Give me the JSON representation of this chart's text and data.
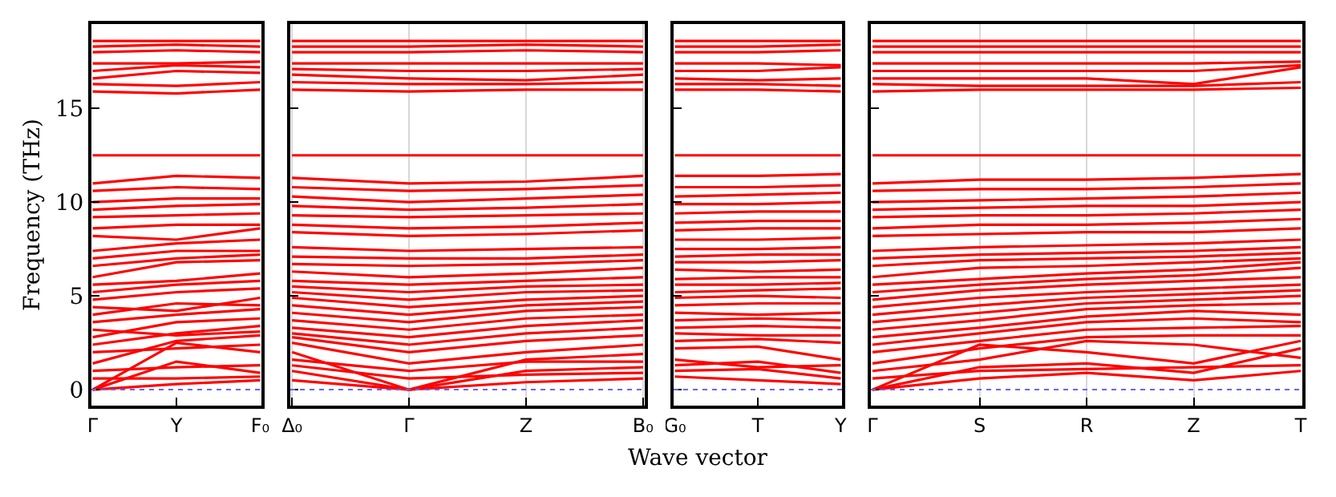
{
  "chart_data": [
    {
      "type": "line",
      "ylabel": "Frequency (THz)",
      "categories": [
        "Γ",
        "Y",
        "F₀"
      ],
      "ylim": [
        -0.85,
        19.5
      ],
      "yticks": [
        0,
        5,
        10,
        15
      ],
      "line_style": "solid",
      "ref_lines": [
        {
          "axis": "y",
          "value": 0,
          "color": "#6666ff",
          "line_style": "dotted"
        }
      ],
      "series": [
        {
          "color": "#ff0000",
          "values": [
            0,
            0.3,
            0.5
          ]
        },
        {
          "color": "#ff0000",
          "values": [
            0,
            1.5,
            0.9
          ]
        },
        {
          "color": "#ff0000",
          "values": [
            0,
            2.5,
            2.0
          ]
        },
        {
          "color": "#ff0000",
          "values": [
            0.6,
            0.6,
            0.7
          ]
        },
        {
          "color": "#ff0000",
          "values": [
            1.0,
            1.2,
            1.3
          ]
        },
        {
          "color": "#ff0000",
          "values": [
            1.4,
            2.6,
            2.9
          ]
        },
        {
          "color": "#ff0000",
          "values": [
            2.0,
            2.2,
            2.4
          ]
        },
        {
          "color": "#ff0000",
          "values": [
            2.4,
            3.0,
            3.4
          ]
        },
        {
          "color": "#ff0000",
          "values": [
            2.8,
            3.6,
            3.8
          ]
        },
        {
          "color": "#ff0000",
          "values": [
            3.2,
            2.9,
            3.1
          ]
        },
        {
          "color": "#ff0000",
          "values": [
            3.6,
            4.0,
            4.3
          ]
        },
        {
          "color": "#ff0000",
          "values": [
            4.0,
            4.6,
            4.5
          ]
        },
        {
          "color": "#ff0000",
          "values": [
            4.4,
            4.2,
            4.9
          ]
        },
        {
          "color": "#ff0000",
          "values": [
            4.8,
            5.2,
            5.4
          ]
        },
        {
          "color": "#ff0000",
          "values": [
            5.2,
            5.6,
            5.8
          ]
        },
        {
          "color": "#ff0000",
          "values": [
            5.6,
            5.8,
            6.2
          ]
        },
        {
          "color": "#ff0000",
          "values": [
            6.0,
            6.8,
            6.9
          ]
        },
        {
          "color": "#ff0000",
          "values": [
            6.6,
            7.0,
            7.2
          ]
        },
        {
          "color": "#ff0000",
          "values": [
            7.0,
            7.4,
            7.4
          ]
        },
        {
          "color": "#ff0000",
          "values": [
            7.4,
            7.8,
            8.0
          ]
        },
        {
          "color": "#ff0000",
          "values": [
            8.2,
            8.0,
            8.6
          ]
        },
        {
          "color": "#ff0000",
          "values": [
            8.6,
            8.8,
            8.8
          ]
        },
        {
          "color": "#ff0000",
          "values": [
            9.2,
            9.3,
            9.4
          ]
        },
        {
          "color": "#ff0000",
          "values": [
            9.6,
            9.8,
            9.9
          ]
        },
        {
          "color": "#ff0000",
          "values": [
            10.0,
            10.2,
            10.2
          ]
        },
        {
          "color": "#ff0000",
          "values": [
            10.6,
            10.8,
            10.7
          ]
        },
        {
          "color": "#ff0000",
          "values": [
            11.0,
            11.4,
            11.3
          ]
        },
        {
          "color": "#ff0000",
          "values": [
            12.5,
            12.5,
            12.5
          ]
        },
        {
          "color": "#ff0000",
          "values": [
            15.9,
            15.8,
            16.0
          ]
        },
        {
          "color": "#ff0000",
          "values": [
            16.3,
            16.2,
            16.4
          ]
        },
        {
          "color": "#ff0000",
          "values": [
            16.6,
            17.0,
            16.9
          ]
        },
        {
          "color": "#ff0000",
          "values": [
            17.0,
            17.3,
            17.2
          ]
        },
        {
          "color": "#ff0000",
          "values": [
            17.4,
            17.4,
            17.5
          ]
        },
        {
          "color": "#ff0000",
          "values": [
            18.0,
            18.1,
            18.0
          ]
        },
        {
          "color": "#ff0000",
          "values": [
            18.3,
            18.4,
            18.3
          ]
        },
        {
          "color": "#ff0000",
          "values": [
            18.6,
            18.6,
            18.6
          ]
        }
      ]
    },
    {
      "type": "line",
      "xlabel": "Wave vector",
      "categories": [
        "Δ₀",
        "Γ",
        "Z",
        "B₀"
      ],
      "ylim": [
        -0.85,
        19.5
      ],
      "yticks": [
        0,
        5,
        10,
        15
      ],
      "tick_labels": "x",
      "grid": "x",
      "line_style": "solid",
      "ref_lines": [
        {
          "axis": "y",
          "value": 0,
          "color": "#6666ff",
          "line_style": "dotted"
        }
      ],
      "series": [
        {
          "color": "#ff0000",
          "values": [
            0.5,
            0,
            0.4,
            0.6
          ]
        },
        {
          "color": "#ff0000",
          "values": [
            1.0,
            0,
            1.0,
            1.2
          ]
        },
        {
          "color": "#ff0000",
          "values": [
            2.0,
            0,
            1.6,
            1.9
          ]
        },
        {
          "color": "#ff0000",
          "values": [
            1.3,
            0.6,
            0.8,
            0.9
          ]
        },
        {
          "color": "#ff0000",
          "values": [
            1.6,
            1.0,
            1.5,
            1.5
          ]
        },
        {
          "color": "#ff0000",
          "values": [
            2.5,
            1.4,
            2.0,
            2.4
          ]
        },
        {
          "color": "#ff0000",
          "values": [
            2.8,
            2.0,
            2.6,
            2.9
          ]
        },
        {
          "color": "#ff0000",
          "values": [
            3.0,
            2.4,
            3.0,
            3.3
          ]
        },
        {
          "color": "#ff0000",
          "values": [
            3.3,
            2.8,
            3.4,
            3.7
          ]
        },
        {
          "color": "#ff0000",
          "values": [
            3.7,
            3.2,
            3.8,
            4.0
          ]
        },
        {
          "color": "#ff0000",
          "values": [
            4.1,
            3.6,
            4.2,
            4.4
          ]
        },
        {
          "color": "#ff0000",
          "values": [
            4.5,
            4.0,
            4.5,
            4.7
          ]
        },
        {
          "color": "#ff0000",
          "values": [
            4.9,
            4.4,
            4.8,
            5.0
          ]
        },
        {
          "color": "#ff0000",
          "values": [
            5.2,
            4.8,
            5.2,
            5.3
          ]
        },
        {
          "color": "#ff0000",
          "values": [
            5.5,
            5.2,
            5.5,
            5.6
          ]
        },
        {
          "color": "#ff0000",
          "values": [
            5.8,
            5.6,
            5.8,
            6.0
          ]
        },
        {
          "color": "#ff0000",
          "values": [
            6.3,
            6.0,
            6.2,
            6.5
          ]
        },
        {
          "color": "#ff0000",
          "values": [
            6.7,
            6.6,
            6.7,
            6.9
          ]
        },
        {
          "color": "#ff0000",
          "values": [
            7.1,
            7.0,
            7.0,
            7.2
          ]
        },
        {
          "color": "#ff0000",
          "values": [
            7.6,
            7.4,
            7.5,
            7.6
          ]
        },
        {
          "color": "#ff0000",
          "values": [
            8.4,
            8.2,
            8.3,
            8.5
          ]
        },
        {
          "color": "#ff0000",
          "values": [
            8.8,
            8.6,
            8.7,
            8.9
          ]
        },
        {
          "color": "#ff0000",
          "values": [
            9.3,
            9.2,
            9.3,
            9.4
          ]
        },
        {
          "color": "#ff0000",
          "values": [
            9.8,
            9.6,
            9.7,
            9.9
          ]
        },
        {
          "color": "#ff0000",
          "values": [
            10.3,
            10.0,
            10.2,
            10.4
          ]
        },
        {
          "color": "#ff0000",
          "values": [
            10.8,
            10.6,
            10.7,
            10.9
          ]
        },
        {
          "color": "#ff0000",
          "values": [
            11.3,
            11.0,
            11.1,
            11.4
          ]
        },
        {
          "color": "#ff0000",
          "values": [
            12.5,
            12.5,
            12.5,
            12.5
          ]
        },
        {
          "color": "#ff0000",
          "values": [
            16.0,
            15.9,
            16.0,
            16.0
          ]
        },
        {
          "color": "#ff0000",
          "values": [
            16.4,
            16.3,
            16.3,
            16.4
          ]
        },
        {
          "color": "#ff0000",
          "values": [
            16.8,
            16.6,
            16.5,
            16.8
          ]
        },
        {
          "color": "#ff0000",
          "values": [
            17.1,
            17.0,
            17.0,
            17.1
          ]
        },
        {
          "color": "#ff0000",
          "values": [
            17.4,
            17.4,
            17.4,
            17.4
          ]
        },
        {
          "color": "#ff0000",
          "values": [
            18.0,
            18.0,
            18.1,
            18.0
          ]
        },
        {
          "color": "#ff0000",
          "values": [
            18.3,
            18.3,
            18.4,
            18.3
          ]
        },
        {
          "color": "#ff0000",
          "values": [
            18.6,
            18.6,
            18.6,
            18.6
          ]
        }
      ]
    },
    {
      "type": "line",
      "categories": [
        "G₀",
        "T",
        "Y"
      ],
      "ylim": [
        -0.85,
        19.5
      ],
      "yticks": [
        0,
        5,
        10,
        15
      ],
      "tick_labels": "x",
      "line_style": "solid",
      "ref_lines": [
        {
          "axis": "y",
          "value": 0,
          "color": "#6666ff",
          "line_style": "dotted"
        }
      ],
      "series": [
        {
          "color": "#ff0000",
          "values": [
            0.7,
            0.5,
            0.3
          ]
        },
        {
          "color": "#ff0000",
          "values": [
            1.0,
            1.1,
            0.6
          ]
        },
        {
          "color": "#ff0000",
          "values": [
            1.3,
            1.5,
            0.9
          ]
        },
        {
          "color": "#ff0000",
          "values": [
            1.6,
            1.2,
            1.3
          ]
        },
        {
          "color": "#ff0000",
          "values": [
            2.2,
            2.3,
            1.6
          ]
        },
        {
          "color": "#ff0000",
          "values": [
            2.6,
            2.7,
            2.5
          ]
        },
        {
          "color": "#ff0000",
          "values": [
            3.0,
            2.9,
            2.9
          ]
        },
        {
          "color": "#ff0000",
          "values": [
            3.3,
            3.4,
            3.3
          ]
        },
        {
          "color": "#ff0000",
          "values": [
            3.7,
            3.8,
            3.7
          ]
        },
        {
          "color": "#ff0000",
          "values": [
            4.1,
            4.0,
            4.1
          ]
        },
        {
          "color": "#ff0000",
          "values": [
            4.5,
            4.6,
            4.6
          ]
        },
        {
          "color": "#ff0000",
          "values": [
            4.9,
            5.0,
            4.9
          ]
        },
        {
          "color": "#ff0000",
          "values": [
            5.2,
            5.3,
            5.4
          ]
        },
        {
          "color": "#ff0000",
          "values": [
            5.6,
            5.6,
            5.7
          ]
        },
        {
          "color": "#ff0000",
          "values": [
            5.9,
            6.0,
            6.0
          ]
        },
        {
          "color": "#ff0000",
          "values": [
            6.4,
            6.3,
            6.4
          ]
        },
        {
          "color": "#ff0000",
          "values": [
            6.8,
            6.8,
            6.9
          ]
        },
        {
          "color": "#ff0000",
          "values": [
            7.1,
            7.2,
            7.2
          ]
        },
        {
          "color": "#ff0000",
          "values": [
            7.5,
            7.5,
            7.6
          ]
        },
        {
          "color": "#ff0000",
          "values": [
            8.0,
            8.0,
            8.1
          ]
        },
        {
          "color": "#ff0000",
          "values": [
            8.5,
            8.6,
            8.6
          ]
        },
        {
          "color": "#ff0000",
          "values": [
            8.9,
            9.0,
            9.0
          ]
        },
        {
          "color": "#ff0000",
          "values": [
            9.4,
            9.5,
            9.5
          ]
        },
        {
          "color": "#ff0000",
          "values": [
            9.9,
            9.9,
            10.0
          ]
        },
        {
          "color": "#ff0000",
          "values": [
            10.3,
            10.4,
            10.5
          ]
        },
        {
          "color": "#ff0000",
          "values": [
            10.8,
            10.8,
            10.9
          ]
        },
        {
          "color": "#ff0000",
          "values": [
            11.4,
            11.4,
            11.5
          ]
        },
        {
          "color": "#ff0000",
          "values": [
            12.5,
            12.5,
            12.5
          ]
        },
        {
          "color": "#ff0000",
          "values": [
            16.0,
            16.0,
            15.9
          ]
        },
        {
          "color": "#ff0000",
          "values": [
            16.3,
            16.3,
            16.2
          ]
        },
        {
          "color": "#ff0000",
          "values": [
            16.6,
            16.5,
            16.6
          ]
        },
        {
          "color": "#ff0000",
          "values": [
            17.0,
            17.0,
            17.2
          ]
        },
        {
          "color": "#ff0000",
          "values": [
            17.4,
            17.4,
            17.3
          ]
        },
        {
          "color": "#ff0000",
          "values": [
            18.0,
            18.0,
            18.1
          ]
        },
        {
          "color": "#ff0000",
          "values": [
            18.3,
            18.3,
            18.4
          ]
        },
        {
          "color": "#ff0000",
          "values": [
            18.6,
            18.6,
            18.6
          ]
        }
      ]
    },
    {
      "type": "line",
      "categories": [
        "Γ",
        "S",
        "R",
        "Z",
        "T"
      ],
      "ylim": [
        -0.85,
        19.5
      ],
      "yticks": [
        0,
        5,
        10,
        15
      ],
      "tick_labels": "x",
      "grid": "x",
      "line_style": "solid",
      "ref_lines": [
        {
          "axis": "y",
          "value": 0,
          "color": "#6666ff",
          "line_style": "dotted"
        }
      ],
      "series": [
        {
          "color": "#ff0000",
          "values": [
            0,
            0.6,
            0.9,
            0.5,
            1.0
          ]
        },
        {
          "color": "#ff0000",
          "values": [
            0,
            1.2,
            1.4,
            0.9,
            2.2
          ]
        },
        {
          "color": "#ff0000",
          "values": [
            0,
            2.4,
            2.0,
            1.4,
            2.6
          ]
        },
        {
          "color": "#ff0000",
          "values": [
            0.6,
            1.0,
            1.1,
            1.2,
            1.3
          ]
        },
        {
          "color": "#ff0000",
          "values": [
            1.0,
            1.6,
            2.6,
            2.4,
            1.7
          ]
        },
        {
          "color": "#ff0000",
          "values": [
            1.4,
            2.2,
            2.8,
            2.9,
            2.9
          ]
        },
        {
          "color": "#ff0000",
          "values": [
            2.0,
            2.6,
            3.2,
            3.3,
            3.4
          ]
        },
        {
          "color": "#ff0000",
          "values": [
            2.4,
            3.0,
            3.6,
            3.8,
            3.6
          ]
        },
        {
          "color": "#ff0000",
          "values": [
            2.8,
            3.3,
            3.9,
            4.2,
            4.0
          ]
        },
        {
          "color": "#ff0000",
          "values": [
            3.2,
            3.7,
            4.3,
            4.5,
            4.6
          ]
        },
        {
          "color": "#ff0000",
          "values": [
            3.6,
            4.1,
            4.6,
            4.8,
            5.0
          ]
        },
        {
          "color": "#ff0000",
          "values": [
            4.0,
            4.5,
            4.9,
            5.1,
            5.3
          ]
        },
        {
          "color": "#ff0000",
          "values": [
            4.4,
            4.9,
            5.2,
            5.4,
            5.6
          ]
        },
        {
          "color": "#ff0000",
          "values": [
            4.8,
            5.3,
            5.6,
            5.8,
            6.0
          ]
        },
        {
          "color": "#ff0000",
          "values": [
            5.2,
            5.6,
            5.9,
            6.1,
            6.5
          ]
        },
        {
          "color": "#ff0000",
          "values": [
            5.6,
            5.9,
            6.2,
            6.4,
            6.8
          ]
        },
        {
          "color": "#ff0000",
          "values": [
            6.0,
            6.5,
            6.6,
            6.8,
            7.0
          ]
        },
        {
          "color": "#ff0000",
          "values": [
            6.6,
            6.9,
            7.0,
            7.1,
            7.3
          ]
        },
        {
          "color": "#ff0000",
          "values": [
            7.0,
            7.2,
            7.3,
            7.4,
            7.6
          ]
        },
        {
          "color": "#ff0000",
          "values": [
            7.4,
            7.6,
            7.7,
            7.8,
            8.0
          ]
        },
        {
          "color": "#ff0000",
          "values": [
            8.2,
            8.3,
            8.4,
            8.4,
            8.6
          ]
        },
        {
          "color": "#ff0000",
          "values": [
            8.6,
            8.8,
            8.8,
            8.9,
            9.1
          ]
        },
        {
          "color": "#ff0000",
          "values": [
            9.2,
            9.3,
            9.3,
            9.4,
            9.6
          ]
        },
        {
          "color": "#ff0000",
          "values": [
            9.6,
            9.7,
            9.8,
            9.8,
            10.0
          ]
        },
        {
          "color": "#ff0000",
          "values": [
            10.0,
            10.1,
            10.2,
            10.3,
            10.5
          ]
        },
        {
          "color": "#ff0000",
          "values": [
            10.6,
            10.7,
            10.7,
            10.8,
            11.0
          ]
        },
        {
          "color": "#ff0000",
          "values": [
            11.0,
            11.2,
            11.2,
            11.3,
            11.5
          ]
        },
        {
          "color": "#ff0000",
          "values": [
            12.5,
            12.5,
            12.5,
            12.5,
            12.5
          ]
        },
        {
          "color": "#ff0000",
          "values": [
            15.9,
            16.0,
            16.0,
            16.0,
            16.1
          ]
        },
        {
          "color": "#ff0000",
          "values": [
            16.3,
            16.2,
            16.2,
            16.2,
            16.4
          ]
        },
        {
          "color": "#ff0000",
          "values": [
            16.6,
            16.6,
            16.6,
            16.3,
            17.2
          ]
        },
        {
          "color": "#ff0000",
          "values": [
            17.0,
            17.0,
            17.0,
            17.0,
            17.3
          ]
        },
        {
          "color": "#ff0000",
          "values": [
            17.4,
            17.4,
            17.4,
            17.4,
            17.5
          ]
        },
        {
          "color": "#ff0000",
          "values": [
            18.0,
            18.0,
            18.0,
            18.0,
            18.0
          ]
        },
        {
          "color": "#ff0000",
          "values": [
            18.3,
            18.3,
            18.3,
            18.3,
            18.3
          ]
        },
        {
          "color": "#ff0000",
          "values": [
            18.6,
            18.6,
            18.6,
            18.6,
            18.6
          ]
        }
      ]
    }
  ]
}
